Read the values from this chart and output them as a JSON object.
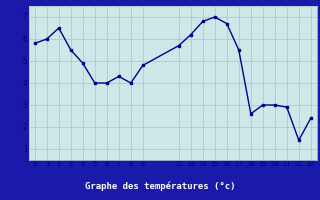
{
  "x": [
    0,
    1,
    2,
    3,
    4,
    5,
    6,
    7,
    8,
    9,
    12,
    13,
    14,
    15,
    16,
    17,
    18,
    19,
    20,
    21,
    22,
    23
  ],
  "y": [
    5.8,
    6.0,
    6.5,
    5.5,
    4.9,
    4.0,
    4.0,
    4.3,
    4.0,
    4.8,
    5.7,
    6.2,
    6.8,
    7.0,
    6.7,
    5.5,
    2.6,
    3.0,
    3.0,
    2.9,
    1.4,
    2.4
  ],
  "xticks": [
    0,
    1,
    2,
    3,
    4,
    5,
    6,
    7,
    8,
    9,
    12,
    13,
    14,
    15,
    16,
    17,
    18,
    19,
    20,
    21,
    22,
    23
  ],
  "yticks": [
    1,
    2,
    3,
    4,
    5,
    6,
    7
  ],
  "xlim": [
    -0.5,
    23.5
  ],
  "ylim": [
    0.5,
    7.5
  ],
  "xlabel": "Graphe des températures (°c)",
  "line_color": "#00008b",
  "marker_color": "#00008b",
  "bg_color": "#cce8e8",
  "grid_color": "#aacccc",
  "axis_bg": "#1a1aaa",
  "xlabel_color": "#ffffff"
}
